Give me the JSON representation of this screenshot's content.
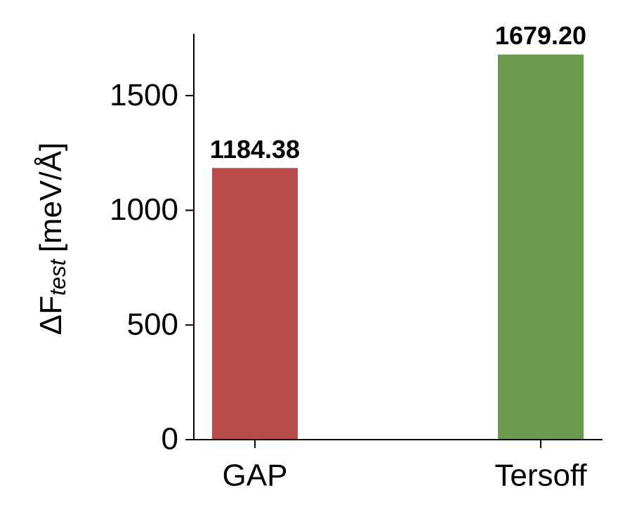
{
  "chart_data": {
    "type": "bar",
    "ylabel": [
      "ΔF",
      "test",
      "[meV/Å]"
    ],
    "categories": [
      "GAP",
      "Tersoff"
    ],
    "values": [
      1184.38,
      1679.2
    ],
    "value_labels": [
      "1184.38",
      "1679.20"
    ],
    "colors": [
      "#bb4a4a",
      "#6b994e"
    ],
    "ylim": [
      0,
      1770
    ],
    "yticks": [
      0,
      500,
      1000,
      1500
    ]
  }
}
